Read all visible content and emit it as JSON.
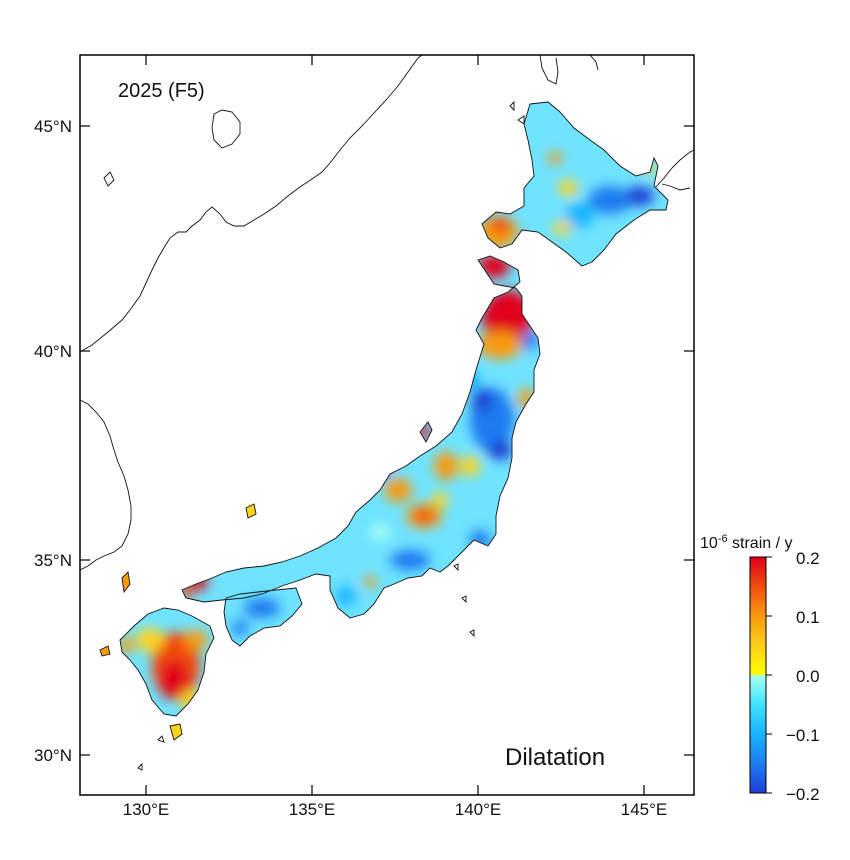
{
  "map": {
    "title": "2025 (F5)",
    "quantity_label": "Dilatation",
    "region": "Japan",
    "lon_range": [
      128,
      146.5
    ],
    "lat_range": [
      29,
      46.7
    ],
    "lon_ticks": [
      "130°E",
      "135°E",
      "140°E",
      "145°E"
    ],
    "lat_ticks": [
      "30°N",
      "35°N",
      "40°N",
      "45°N"
    ]
  },
  "colorbar": {
    "unit_prefix": "10",
    "unit_exponent": "-6",
    "unit_suffix": " strain / y",
    "tick_labels": [
      "0.2",
      "0.1",
      "0.0",
      "−0.1",
      "−0.2"
    ],
    "range": [
      -0.2,
      0.2
    ],
    "stops": [
      {
        "value": 0.2,
        "color": "#e0001a"
      },
      {
        "value": 0.15,
        "color": "#f04a10"
      },
      {
        "value": 0.1,
        "color": "#f79a10"
      },
      {
        "value": 0.05,
        "color": "#ffd21a"
      },
      {
        "value": 0.0,
        "color": "#fffb00"
      },
      {
        "value": -0.001,
        "color": "#a8fff0"
      },
      {
        "value": -0.05,
        "color": "#40e6ff"
      },
      {
        "value": -0.1,
        "color": "#18b4ff"
      },
      {
        "value": -0.15,
        "color": "#1c7cf0"
      },
      {
        "value": -0.2,
        "color": "#1f3fd6"
      }
    ]
  },
  "colors": {
    "land_outline": "#111111",
    "ocean": "#ffffff",
    "frame": "#000000",
    "base_fill": "#6fe3ff"
  }
}
